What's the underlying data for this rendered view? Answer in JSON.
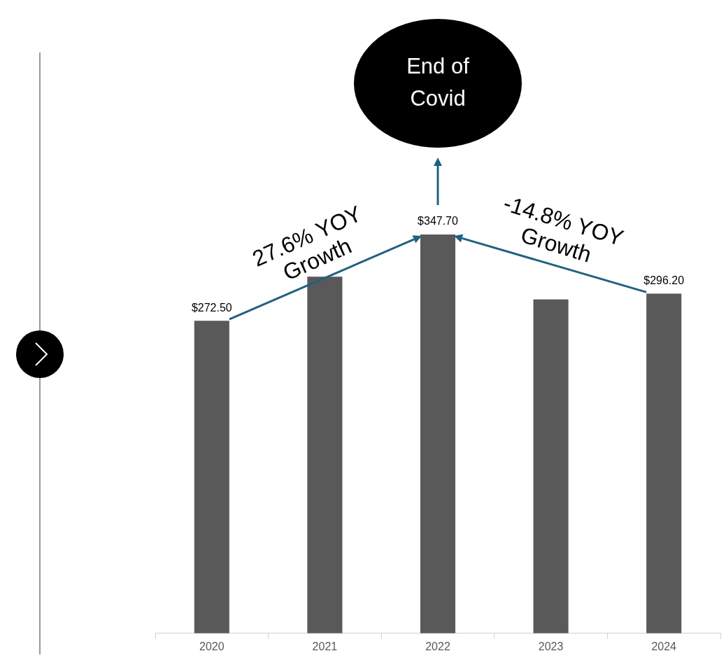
{
  "chart_data": {
    "type": "bar",
    "categories": [
      "2020",
      "2021",
      "2022",
      "2023",
      "2024"
    ],
    "values": [
      272.5,
      310.9,
      347.7,
      291.1,
      296.2
    ],
    "value_labels": [
      "$272.50",
      null,
      "$347.70",
      null,
      "$296.20"
    ],
    "color": "#595959",
    "annotations": [
      "27.6% YOY Growth",
      "-14.8% YOY Growth",
      "End of Covid"
    ],
    "grid": false,
    "legend": false
  }
}
